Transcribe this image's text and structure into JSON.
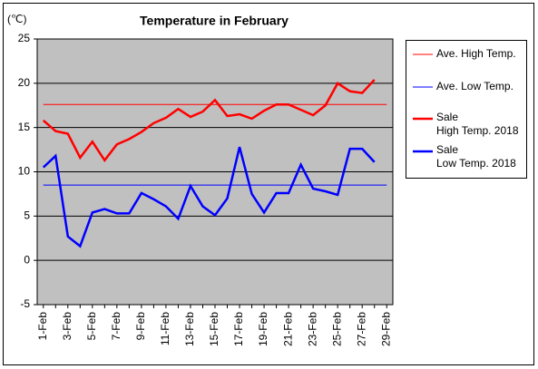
{
  "chart_data": {
    "type": "line",
    "title": "Temperature in February",
    "y_label": "(℃)",
    "categories": [
      "1-Feb",
      null,
      "3-Feb",
      null,
      "5-Feb",
      null,
      "7-Feb",
      null,
      "9-Feb",
      null,
      "11-Feb",
      null,
      "13-Feb",
      null,
      "15-Feb",
      null,
      "17-Feb",
      null,
      "19-Feb",
      null,
      "21-Feb",
      null,
      "23-Feb",
      null,
      "25-Feb",
      null,
      "27-Feb",
      null,
      "29-Feb"
    ],
    "series": [
      {
        "name": "Ave. High Temp.",
        "color": "#ff0000",
        "width": 1,
        "values": [
          17.6,
          17.6,
          17.6,
          17.6,
          17.6,
          17.6,
          17.6,
          17.6,
          17.6,
          17.6,
          17.6,
          17.6,
          17.6,
          17.6,
          17.6,
          17.6,
          17.6,
          17.6,
          17.6,
          17.6,
          17.6,
          17.6,
          17.6,
          17.6,
          17.6,
          17.6,
          17.6,
          17.6,
          17.6
        ]
      },
      {
        "name": "Ave. Low Temp.",
        "color": "#0000ff",
        "width": 1,
        "values": [
          8.5,
          8.5,
          8.5,
          8.5,
          8.5,
          8.5,
          8.5,
          8.5,
          8.5,
          8.5,
          8.5,
          8.5,
          8.5,
          8.5,
          8.5,
          8.5,
          8.5,
          8.5,
          8.5,
          8.5,
          8.5,
          8.5,
          8.5,
          8.5,
          8.5,
          8.5,
          8.5,
          8.5,
          8.5
        ]
      },
      {
        "name": "Sale\nHigh Temp. 2018",
        "color": "#ff0000",
        "width": 2.5,
        "values": [
          15.8,
          14.6,
          14.3,
          11.6,
          13.4,
          11.3,
          13.1,
          13.7,
          14.5,
          15.5,
          16.1,
          17.1,
          16.2,
          16.8,
          18.1,
          16.3,
          16.5,
          16.0,
          16.9,
          17.6,
          17.6,
          17.0,
          16.4,
          17.5,
          20.0,
          19.1,
          18.9,
          20.4,
          null
        ]
      },
      {
        "name": "Sale\nLow Temp. 2018",
        "color": "#0000ff",
        "width": 2.5,
        "values": [
          10.5,
          11.8,
          2.7,
          1.6,
          5.4,
          5.8,
          5.3,
          5.3,
          7.6,
          6.9,
          6.1,
          4.7,
          8.4,
          6.1,
          5.1,
          7.0,
          12.8,
          7.5,
          5.4,
          7.6,
          7.6,
          10.8,
          8.1,
          7.8,
          7.4,
          12.6,
          12.6,
          11.1,
          null
        ]
      }
    ],
    "ylim": [
      -5,
      25
    ],
    "yticks": [
      -5,
      0,
      5,
      10,
      15,
      20,
      25
    ],
    "grid": true,
    "plot_background": "#c0c0c0"
  }
}
